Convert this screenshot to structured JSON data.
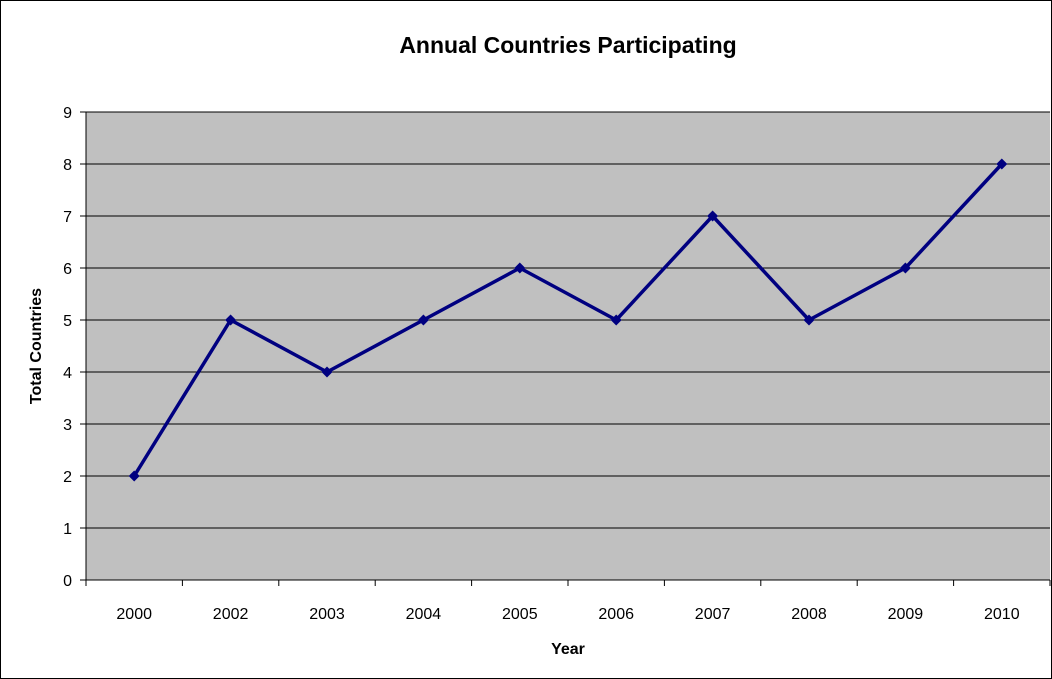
{
  "chart_data": {
    "type": "line",
    "title": "Annual Countries Participating",
    "xlabel": "Year",
    "ylabel": "Total Countries",
    "categories": [
      "2000",
      "2002",
      "2003",
      "2004",
      "2005",
      "2006",
      "2007",
      "2008",
      "2009",
      "2010"
    ],
    "series": [
      {
        "values": [
          2,
          5,
          4,
          5,
          6,
          5,
          7,
          5,
          6,
          8
        ]
      }
    ],
    "ylim": [
      0,
      9
    ],
    "ytick_step": 1,
    "grid": "horizontal",
    "legend": "none",
    "colors": {
      "plot_background": "#c0c0c0",
      "gridline": "#000000",
      "series_line": "#000080",
      "marker": "#000080"
    },
    "marker": "diamond"
  }
}
